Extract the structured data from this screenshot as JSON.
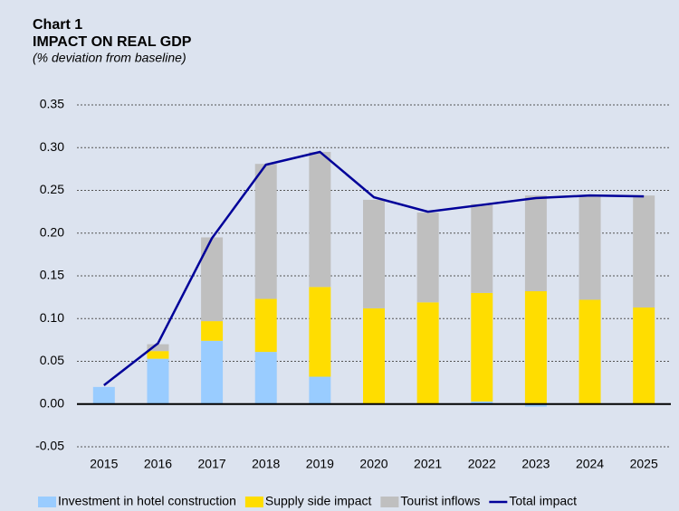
{
  "chart_data": {
    "type": "bar",
    "title": "Chart 1",
    "subtitle": "IMPACT ON REAL GDP",
    "note": "(% deviation from baseline)",
    "categories": [
      "2015",
      "2016",
      "2017",
      "2018",
      "2019",
      "2020",
      "2021",
      "2022",
      "2023",
      "2024",
      "2025"
    ],
    "series": [
      {
        "name": "Investment in hotel construction",
        "type": "bar",
        "color": "#99ccff",
        "values": [
          0.02,
          0.053,
          0.074,
          0.061,
          0.032,
          0,
          0,
          0.003,
          -0.003,
          0,
          0
        ]
      },
      {
        "name": "Supply side impact",
        "type": "bar",
        "color": "#ffdd00",
        "values": [
          0,
          0.009,
          0.023,
          0.062,
          0.105,
          0.112,
          0.119,
          0.127,
          0.132,
          0.122,
          0.113
        ]
      },
      {
        "name": "Tourist inflows",
        "type": "bar",
        "color": "#bfbfbf",
        "values": [
          0,
          0.008,
          0.098,
          0.158,
          0.158,
          0.127,
          0.105,
          0.104,
          0.112,
          0.122,
          0.131
        ]
      },
      {
        "name": "Total impact",
        "type": "line",
        "color": "#000099",
        "values": [
          0.022,
          0.071,
          0.194,
          0.28,
          0.295,
          0.242,
          0.225,
          0.233,
          0.241,
          0.244,
          0.243
        ]
      }
    ],
    "ylim": [
      -0.05,
      0.35
    ],
    "yticks": [
      {
        "value": -0.05,
        "label": "-0.05"
      },
      {
        "value": 0,
        "label": "0.00"
      },
      {
        "value": 0.05,
        "label": "0.05"
      },
      {
        "value": 0.1,
        "label": "0.10"
      },
      {
        "value": 0.15,
        "label": "0.15"
      },
      {
        "value": 0.2,
        "label": "0.20"
      },
      {
        "value": 0.25,
        "label": "0.25"
      },
      {
        "value": 0.3,
        "label": "0.30"
      },
      {
        "value": 0.35,
        "label": "0.35"
      }
    ],
    "grid": true,
    "legend": "bottom"
  }
}
